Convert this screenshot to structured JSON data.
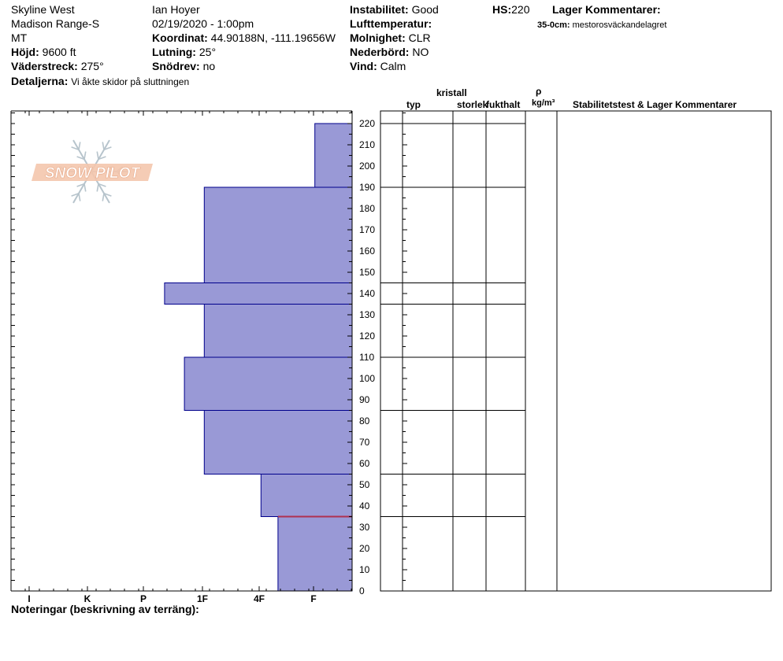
{
  "site": {
    "name": "Skyline West",
    "range": "Madison Range-S",
    "state": "MT",
    "elevation_label": "Höjd:",
    "elevation_value": "9600 ft",
    "aspect_label": "Väderstreck:",
    "aspect_value": "275°",
    "details_label": "Detaljerna:",
    "details_value": "Vi åkte skidor på sluttningen"
  },
  "observer": {
    "name": "Ian Hoyer",
    "datetime": "02/19/2020 - 1:00pm",
    "coord_label": "Koordinat:",
    "coord_value": "44.90188N, -111.19656W",
    "slope_label": "Lutning:",
    "slope_value": "25°",
    "drift_label": "Snödrev:",
    "drift_value": "no"
  },
  "conditions": {
    "instability_label": "Instabilitet:",
    "instability_value": "Good",
    "airtemp_label": "Lufttemperatur:",
    "airtemp_value": "",
    "sky_label": "Molnighet:",
    "sky_value": "CLR",
    "precip_label": "Nederbörd:",
    "precip_value": "NO",
    "wind_label": "Vind:",
    "wind_value": "Calm"
  },
  "snowpack": {
    "hs_label": "HS:",
    "hs_value": "220",
    "layer_comments_label": "Lager Kommentarer:",
    "layer_comment_depth": "35-0cm:",
    "layer_comment_text": "mestorosväckandelagret"
  },
  "table_headers": {
    "crystal": "kristall",
    "type": "typ",
    "size": "storlek",
    "moisture": "fukthalt",
    "rho": "ρ",
    "density_unit": "kg/m³",
    "stability": "Stabilitetstest & Lager Kommentarer"
  },
  "notes_label": "Noteringar (beskrivning av terräng):",
  "logo_text": "SNOW PILOT",
  "colors": {
    "layer_fill": "#9999d6",
    "layer_stroke": "#00008b",
    "marker_line": "#b03050",
    "logo": "#f4c7ad"
  },
  "chart_data": {
    "type": "bar",
    "orientation": "horizontal",
    "title": "",
    "ylabel": "",
    "xlabel": "",
    "ylim": [
      0,
      225
    ],
    "y_ticks": [
      0,
      10,
      20,
      30,
      40,
      50,
      60,
      70,
      80,
      90,
      100,
      110,
      120,
      130,
      140,
      150,
      160,
      170,
      180,
      190,
      200,
      210,
      220
    ],
    "hardness_categories": [
      "I",
      "K",
      "P",
      "1F",
      "4F",
      "F"
    ],
    "hardness_tick_labels": [
      "I",
      "K",
      "P",
      "1F",
      "4F",
      "F"
    ],
    "layers": [
      {
        "top": 220,
        "bottom": 190,
        "hardness_index": 0.65
      },
      {
        "top": 190,
        "bottom": 145,
        "hardness_index": 2.6
      },
      {
        "top": 145,
        "bottom": 135,
        "hardness_index": 3.3
      },
      {
        "top": 135,
        "bottom": 110,
        "hardness_index": 2.6
      },
      {
        "top": 110,
        "bottom": 85,
        "hardness_index": 2.95
      },
      {
        "top": 85,
        "bottom": 55,
        "hardness_index": 2.6
      },
      {
        "top": 55,
        "bottom": 35,
        "hardness_index": 1.6
      },
      {
        "top": 35,
        "bottom": 0,
        "hardness_index": 1.3
      }
    ],
    "layer_boundaries": [
      220,
      190,
      145,
      135,
      110,
      85,
      55,
      35
    ],
    "marked_depth": 35
  }
}
